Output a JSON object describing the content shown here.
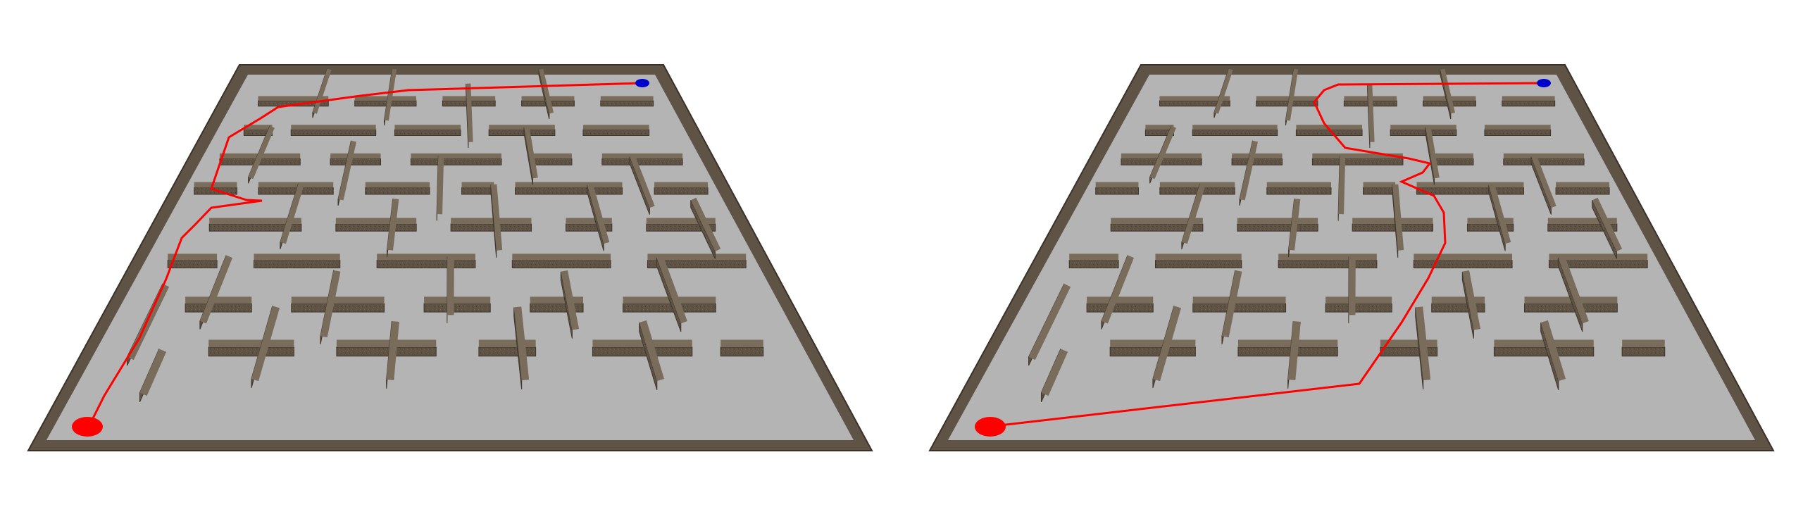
{
  "scene": {
    "panels": [
      {
        "id": "left",
        "path_description": "route",
        "start_marker_color": "#ff0000",
        "goal_marker_color": "#0000cc",
        "path_color": "#ff0000"
      },
      {
        "id": "right",
        "path_description": "route",
        "start_marker_color": "#ff0000",
        "goal_marker_color": "#0000cc",
        "path_color": "#ff0000"
      }
    ],
    "colors": {
      "floor": "#b4b4b4",
      "wall": "#5e5245",
      "background": "#ffffff"
    }
  }
}
